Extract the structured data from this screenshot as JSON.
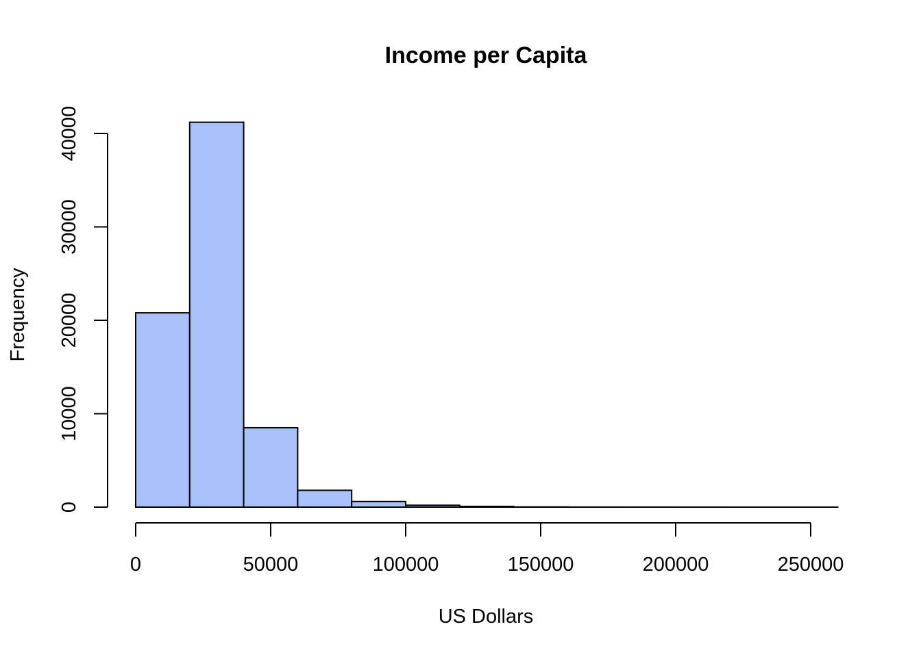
{
  "chart_data": {
    "type": "bar",
    "subtype": "histogram",
    "title": "Income per Capita",
    "xlabel": "US Dollars",
    "ylabel": "Frequency",
    "bin_width": 20000,
    "bins": [
      {
        "start": 0,
        "end": 20000,
        "count": 20800
      },
      {
        "start": 20000,
        "end": 40000,
        "count": 41200
      },
      {
        "start": 40000,
        "end": 60000,
        "count": 8500
      },
      {
        "start": 60000,
        "end": 80000,
        "count": 1800
      },
      {
        "start": 80000,
        "end": 100000,
        "count": 600
      },
      {
        "start": 100000,
        "end": 120000,
        "count": 200
      },
      {
        "start": 120000,
        "end": 140000,
        "count": 80
      },
      {
        "start": 140000,
        "end": 160000,
        "count": 20
      },
      {
        "start": 160000,
        "end": 180000,
        "count": 8
      },
      {
        "start": 180000,
        "end": 200000,
        "count": 4
      },
      {
        "start": 200000,
        "end": 220000,
        "count": 2
      },
      {
        "start": 220000,
        "end": 240000,
        "count": 1
      },
      {
        "start": 240000,
        "end": 260000,
        "count": 1
      }
    ],
    "xlim": [
      0,
      260000
    ],
    "ylim": [
      0,
      40000
    ],
    "x_ticks": [
      0,
      50000,
      100000,
      150000,
      200000,
      250000
    ],
    "x_tick_labels": [
      "0",
      "50000",
      "100000",
      "150000",
      "200000",
      "250000"
    ],
    "y_ticks": [
      0,
      10000,
      20000,
      30000,
      40000
    ],
    "y_tick_labels": [
      "0",
      "10000",
      "20000",
      "30000",
      "40000"
    ],
    "bar_color": "#A8C1F8",
    "edge_color": "#000000",
    "grid": false,
    "legend": "none"
  }
}
